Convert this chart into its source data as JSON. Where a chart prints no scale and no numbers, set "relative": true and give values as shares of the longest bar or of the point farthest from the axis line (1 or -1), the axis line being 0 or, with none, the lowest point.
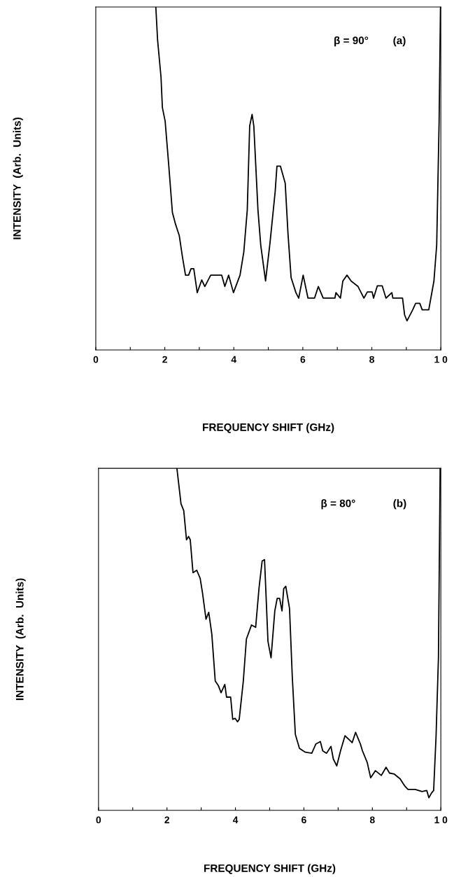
{
  "chart_data": [
    {
      "type": "line",
      "xlabel": "FREQUENCY SHIFT (GHz)",
      "ylabel": "INTENSITY  (Arb.  Units)",
      "relative": true,
      "xlim": [
        0,
        10
      ],
      "xticks": [
        0,
        {
          "value": 1,
          "label": null
        },
        2,
        {
          "value": 3,
          "label": null
        },
        4,
        {
          "value": 5,
          "label": null
        },
        6,
        {
          "value": 7,
          "label": null
        },
        8,
        {
          "value": 9,
          "label": null
        },
        {
          "value": 10,
          "label": "1 0"
        }
      ],
      "annotations": [
        "β = 90°",
        "(a)"
      ],
      "marker": "none",
      "line_style": "solid",
      "grid": false,
      "legend": false,
      "series": [
        {
          "color": "#000000",
          "x": [
            1.74,
            1.79,
            1.89,
            1.93,
            2.01,
            2.11,
            2.22,
            2.31,
            2.42,
            2.51,
            2.6,
            2.69,
            2.76,
            2.84,
            2.94,
            3.07,
            3.16,
            3.33,
            3.65,
            3.74,
            3.85,
            3.99,
            4.18,
            4.29,
            4.39,
            4.46,
            4.53,
            4.58,
            4.7,
            4.78,
            4.92,
            5.05,
            5.2,
            5.25,
            5.35,
            5.49,
            5.57,
            5.66,
            5.8,
            5.88,
            6.01,
            6.15,
            6.34,
            6.45,
            6.59,
            6.93,
            6.96,
            7.09,
            7.16,
            7.28,
            7.4,
            7.6,
            7.77,
            7.87,
            8.01,
            8.05,
            8.16,
            8.3,
            8.41,
            8.58,
            8.61,
            8.89,
            8.95,
            9.02,
            9.18,
            9.27,
            9.39,
            9.46,
            9.65,
            9.8,
            9.88,
            9.95,
            9.99
          ],
          "values": [
            1.0,
            0.905,
            0.796,
            0.707,
            0.667,
            0.544,
            0.401,
            0.367,
            0.333,
            0.272,
            0.218,
            0.218,
            0.237,
            0.237,
            0.167,
            0.204,
            0.185,
            0.218,
            0.218,
            0.185,
            0.218,
            0.167,
            0.218,
            0.286,
            0.408,
            0.653,
            0.687,
            0.653,
            0.408,
            0.306,
            0.201,
            0.313,
            0.463,
            0.536,
            0.536,
            0.486,
            0.34,
            0.211,
            0.167,
            0.151,
            0.218,
            0.151,
            0.151,
            0.185,
            0.151,
            0.151,
            0.167,
            0.151,
            0.201,
            0.218,
            0.201,
            0.185,
            0.151,
            0.169,
            0.169,
            0.151,
            0.187,
            0.187,
            0.151,
            0.167,
            0.151,
            0.151,
            0.102,
            0.085,
            0.116,
            0.136,
            0.136,
            0.117,
            0.117,
            0.201,
            0.306,
            0.667,
            1.0
          ]
        }
      ]
    },
    {
      "type": "line",
      "xlabel": "FREQUENCY SHIFT (GHz)",
      "ylabel": "INTENSITY  (Arb.  Units)",
      "relative": true,
      "xlim": [
        0,
        10
      ],
      "xticks": [
        0,
        {
          "value": 1,
          "label": null
        },
        2,
        {
          "value": 3,
          "label": null
        },
        4,
        {
          "value": 5,
          "label": null
        },
        6,
        {
          "value": 7,
          "label": null
        },
        8,
        {
          "value": 9,
          "label": null
        },
        {
          "value": 10,
          "label": "1 0"
        }
      ],
      "annotations": [
        "β = 80°",
        "(b)"
      ],
      "marker": "none",
      "line_style": "solid",
      "grid": false,
      "legend": false,
      "series": [
        {
          "color": "#000000",
          "x": [
            2.29,
            2.41,
            2.49,
            2.57,
            2.63,
            2.68,
            2.76,
            2.87,
            2.97,
            3.04,
            3.14,
            3.22,
            3.31,
            3.41,
            3.5,
            3.58,
            3.69,
            3.74,
            3.86,
            3.92,
            3.99,
            4.06,
            4.11,
            4.23,
            4.32,
            4.47,
            4.59,
            4.69,
            4.78,
            4.85,
            4.95,
            5.04,
            5.15,
            5.22,
            5.29,
            5.36,
            5.41,
            5.47,
            5.58,
            5.66,
            5.75,
            5.87,
            6.04,
            6.23,
            6.35,
            6.48,
            6.55,
            6.66,
            6.79,
            6.86,
            6.96,
            7.07,
            7.2,
            7.34,
            7.41,
            7.51,
            7.65,
            7.71,
            7.85,
            7.95,
            8.09,
            8.26,
            8.4,
            8.5,
            8.64,
            8.81,
            8.94,
            9.04,
            9.25,
            9.45,
            9.59,
            9.65,
            9.73,
            9.79,
            9.86,
            9.93,
            9.98
          ],
          "values": [
            1.0,
            0.896,
            0.876,
            0.791,
            0.801,
            0.791,
            0.695,
            0.702,
            0.678,
            0.634,
            0.559,
            0.579,
            0.515,
            0.378,
            0.365,
            0.344,
            0.368,
            0.331,
            0.331,
            0.266,
            0.269,
            0.259,
            0.266,
            0.378,
            0.501,
            0.542,
            0.535,
            0.651,
            0.729,
            0.733,
            0.494,
            0.446,
            0.583,
            0.62,
            0.62,
            0.583,
            0.648,
            0.655,
            0.59,
            0.392,
            0.222,
            0.181,
            0.17,
            0.167,
            0.194,
            0.201,
            0.174,
            0.167,
            0.187,
            0.15,
            0.13,
            0.174,
            0.218,
            0.205,
            0.198,
            0.228,
            0.194,
            0.174,
            0.14,
            0.095,
            0.116,
            0.102,
            0.126,
            0.109,
            0.106,
            0.092,
            0.072,
            0.061,
            0.061,
            0.055,
            0.058,
            0.037,
            0.051,
            0.058,
            0.215,
            0.446,
            1.0
          ]
        }
      ]
    }
  ]
}
